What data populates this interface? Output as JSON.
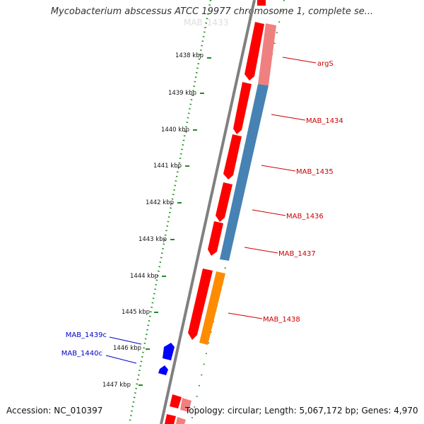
{
  "title": "Mycobacterium abscessus ATCC 19977 chromosome 1, complete se...",
  "faint_header": "MAB_1433",
  "footer": {
    "accession": "Accession: NC_010397",
    "topology": "Topology: circular; Length: 5,067,172 bp; Genes: 4,970"
  },
  "ticks": [
    "1438 kbp",
    "1439 kbp",
    "1440 kbp",
    "1441 kbp",
    "1442 kbp",
    "1443 kbp",
    "1444 kbp",
    "1445 kbp",
    "1446 kbp",
    "1447 kbp"
  ],
  "gene_labels_right": [
    "argS",
    "MAB_1434",
    "MAB_1435",
    "MAB_1436",
    "MAB_1437",
    "MAB_1438"
  ],
  "gene_labels_left": [
    "MAB_1439c",
    "MAB_1440c"
  ],
  "colors": {
    "red": "#ff0000",
    "pink": "#f08080",
    "blue": "#4682b4",
    "orange": "#ff8c00",
    "dark_blue": "#0000ff",
    "tick_green": "#228b22",
    "label_red": "#cc0000",
    "label_blue": "#0000cc",
    "backbone": "#808080"
  }
}
